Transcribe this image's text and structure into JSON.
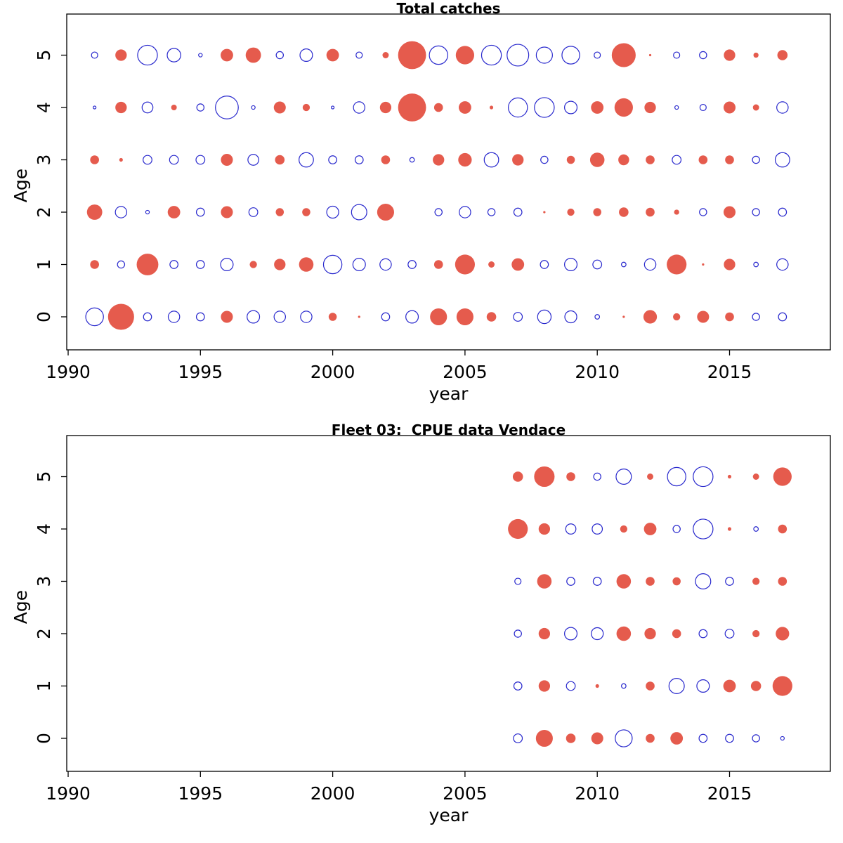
{
  "style": {
    "background": "#ffffff",
    "negative_fill": "#e55b4d",
    "positive_stroke": "#2828cd",
    "axis_color": "#000000"
  },
  "chart_data": [
    {
      "type": "scatter",
      "subtype": "bubble-residual-plot",
      "title": "Total catches",
      "xlabel": "year",
      "ylabel": "Age",
      "x_ticks": [
        1990,
        1995,
        2000,
        2005,
        2010,
        2015
      ],
      "y_ticks": [
        0,
        1,
        2,
        3,
        4,
        5
      ],
      "xlim": [
        1989.9,
        2018.6
      ],
      "ylim": [
        -0.7,
        5.8
      ],
      "grid": false,
      "legend": "none",
      "sign_convention": "filled red circle = negative value, open blue circle = positive value; bubble area proportional to |value|",
      "years": [
        1991,
        1992,
        1993,
        1994,
        1995,
        1996,
        1997,
        1998,
        1999,
        2000,
        2001,
        2002,
        2003,
        2004,
        2005,
        2006,
        2007,
        2008,
        2009,
        2010,
        2011,
        2012,
        2013,
        2014,
        2015,
        2016,
        2017
      ],
      "series": [
        {
          "age": 5,
          "values": [
            0.15,
            -0.5,
            1.5,
            0.7,
            0.05,
            -0.6,
            -0.9,
            0.2,
            0.6,
            -0.6,
            0.15,
            -0.15,
            -3.0,
            1.3,
            -1.3,
            1.5,
            1.8,
            1.0,
            1.2,
            0.15,
            -2.2,
            -0.02,
            0.15,
            0.2,
            -0.5,
            -0.1,
            -0.4
          ]
        },
        {
          "age": 4,
          "values": [
            0.03,
            -0.5,
            0.45,
            -0.12,
            0.2,
            2.0,
            0.05,
            -0.55,
            -0.2,
            0.03,
            0.5,
            -0.5,
            -3.0,
            -0.3,
            -0.6,
            -0.05,
            1.4,
            1.5,
            0.6,
            -0.6,
            -1.3,
            -0.5,
            0.05,
            0.15,
            -0.55,
            -0.15,
            0.5
          ]
        },
        {
          "age": 3,
          "values": [
            -0.3,
            -0.05,
            0.3,
            0.3,
            0.3,
            -0.55,
            0.45,
            -0.35,
            0.8,
            0.25,
            0.25,
            -0.3,
            0.08,
            -0.5,
            -0.7,
            0.8,
            -0.5,
            0.2,
            -0.25,
            -0.8,
            -0.45,
            -0.3,
            0.3,
            -0.3,
            -0.3,
            0.2,
            0.8
          ]
        },
        {
          "age": 2,
          "values": [
            -0.9,
            0.5,
            0.05,
            -0.6,
            0.25,
            -0.55,
            0.3,
            -0.25,
            -0.25,
            0.55,
            0.9,
            -1.1,
            null,
            0.2,
            0.5,
            0.2,
            0.25,
            -0.02,
            -0.2,
            -0.25,
            -0.35,
            -0.3,
            -0.1,
            0.2,
            -0.55,
            0.2,
            0.25
          ]
        },
        {
          "age": 1,
          "values": [
            -0.3,
            0.2,
            -1.8,
            0.25,
            0.25,
            0.6,
            -0.2,
            -0.5,
            -0.8,
            1.3,
            0.6,
            0.5,
            0.25,
            -0.3,
            -1.5,
            -0.15,
            -0.6,
            0.25,
            0.6,
            0.3,
            0.08,
            0.5,
            -1.5,
            -0.02,
            -0.5,
            0.08,
            0.5
          ]
        },
        {
          "age": 0,
          "values": [
            1.2,
            -2.6,
            0.25,
            0.5,
            0.25,
            -0.55,
            0.6,
            0.5,
            0.5,
            -0.25,
            -0.02,
            0.25,
            0.6,
            -1.1,
            -1.1,
            -0.35,
            0.3,
            0.7,
            0.55,
            0.08,
            -0.02,
            -0.7,
            -0.2,
            -0.55,
            -0.3,
            0.2,
            0.25
          ]
        }
      ]
    },
    {
      "type": "scatter",
      "subtype": "bubble-residual-plot",
      "title": "Fleet 03:  CPUE data Vendace",
      "xlabel": "year",
      "ylabel": "Age",
      "x_ticks": [
        1990,
        1995,
        2000,
        2005,
        2010,
        2015
      ],
      "y_ticks": [
        0,
        1,
        2,
        3,
        4,
        5
      ],
      "xlim": [
        1989.9,
        2018.6
      ],
      "ylim": [
        -0.7,
        5.8
      ],
      "grid": false,
      "legend": "none",
      "sign_convention": "filled red circle = negative value, open blue circle = positive value; bubble area proportional to |value|",
      "years": [
        2007,
        2008,
        2009,
        2010,
        2011,
        2012,
        2013,
        2014,
        2015,
        2016,
        2017
      ],
      "series": [
        {
          "age": 5,
          "values": [
            -0.4,
            -1.6,
            -0.3,
            0.2,
            0.9,
            -0.15,
            1.3,
            1.5,
            -0.05,
            -0.15,
            -1.3
          ]
        },
        {
          "age": 4,
          "values": [
            -1.5,
            -0.5,
            0.4,
            0.4,
            -0.2,
            -0.6,
            0.2,
            1.5,
            -0.05,
            0.08,
            -0.3
          ]
        },
        {
          "age": 3,
          "values": [
            0.15,
            -0.8,
            0.25,
            0.25,
            -0.8,
            -0.3,
            -0.25,
            0.9,
            0.25,
            -0.2,
            -0.3
          ]
        },
        {
          "age": 2,
          "values": [
            0.2,
            -0.5,
            0.6,
            0.55,
            -0.8,
            -0.5,
            -0.3,
            0.25,
            0.3,
            -0.2,
            -0.7
          ]
        },
        {
          "age": 1,
          "values": [
            0.25,
            -0.5,
            0.3,
            -0.05,
            0.08,
            -0.3,
            0.9,
            0.6,
            -0.6,
            -0.4,
            -1.5
          ]
        },
        {
          "age": 0,
          "values": [
            0.3,
            -1.1,
            -0.35,
            -0.55,
            1.1,
            -0.3,
            -0.6,
            0.25,
            0.25,
            0.2,
            0.05
          ]
        }
      ]
    }
  ]
}
